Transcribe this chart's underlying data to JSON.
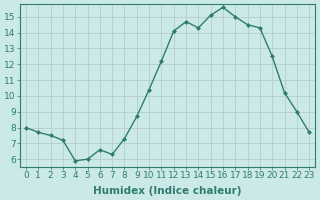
{
  "x": [
    0,
    1,
    2,
    3,
    4,
    5,
    6,
    7,
    8,
    9,
    10,
    11,
    12,
    13,
    14,
    15,
    16,
    17,
    18,
    19,
    20,
    21,
    22,
    23
  ],
  "y": [
    8.0,
    7.7,
    7.5,
    7.2,
    5.9,
    6.0,
    6.6,
    6.3,
    7.3,
    8.7,
    10.4,
    12.2,
    14.1,
    14.7,
    14.3,
    15.1,
    15.6,
    15.0,
    14.5,
    14.3,
    12.5,
    10.2,
    9.0,
    7.7
  ],
  "line_color": "#2e7d6e",
  "marker": "D",
  "marker_size": 2,
  "bg_color": "#cce9e9",
  "grid_color": "#b0c8c8",
  "xlabel": "Humidex (Indice chaleur)",
  "xlim": [
    -0.5,
    23.5
  ],
  "ylim": [
    5.5,
    15.8
  ],
  "yticks": [
    6,
    7,
    8,
    9,
    10,
    11,
    12,
    13,
    14,
    15
  ],
  "xticks": [
    0,
    1,
    2,
    3,
    4,
    5,
    6,
    7,
    8,
    9,
    10,
    11,
    12,
    13,
    14,
    15,
    16,
    17,
    18,
    19,
    20,
    21,
    22,
    23
  ],
  "tick_label_fontsize": 6.5,
  "xlabel_fontsize": 7.5,
  "line_width": 1.0,
  "tick_color": "#2e7d6e",
  "spine_color": "#2e7d6e"
}
